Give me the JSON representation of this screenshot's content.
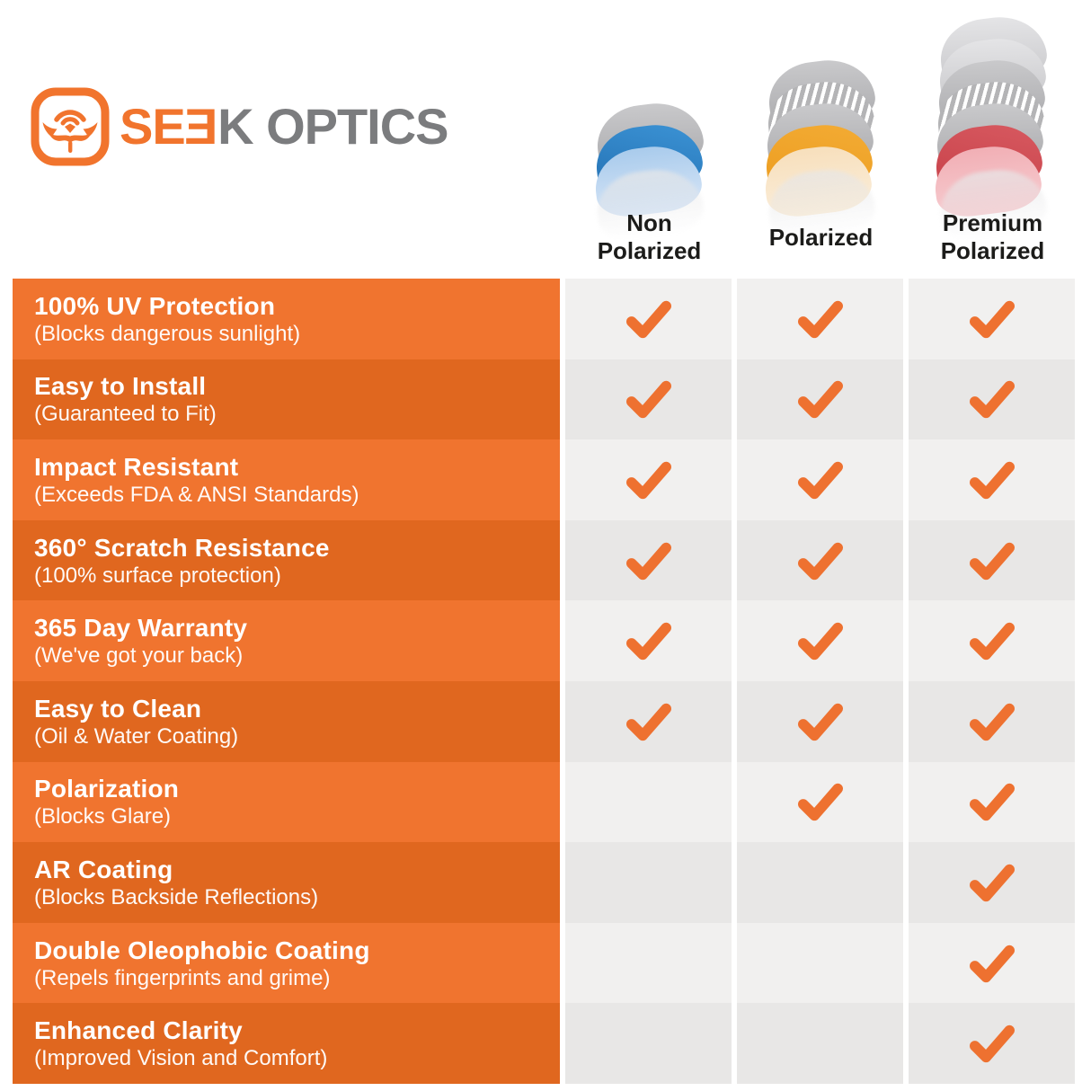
{
  "brand": {
    "wordmark_orange": "SE",
    "wordmark_reversed_e": "E",
    "wordmark_gray": "K OPTICS",
    "logo_icon": "seek-face-logo"
  },
  "chart_data": {
    "type": "table",
    "columns": [
      "Non\nPolarized",
      "Polarized",
      "Premium\nPolarized"
    ],
    "rows": [
      {
        "feature": "100% UV Protection",
        "note": "(Blocks dangerous sunlight)",
        "checks": [
          true,
          true,
          true
        ]
      },
      {
        "feature": "Easy to Install",
        "note": "(Guaranteed to Fit)",
        "checks": [
          true,
          true,
          true
        ]
      },
      {
        "feature": "Impact Resistant",
        "note": "(Exceeds FDA & ANSI Standards)",
        "checks": [
          true,
          true,
          true
        ]
      },
      {
        "feature": "360° Scratch Resistance",
        "note": "(100% surface protection)",
        "checks": [
          true,
          true,
          true
        ]
      },
      {
        "feature": "365 Day Warranty",
        "note": "(We've got your back)",
        "checks": [
          true,
          true,
          true
        ]
      },
      {
        "feature": "Easy to Clean",
        "note": "(Oil & Water Coating)",
        "checks": [
          true,
          true,
          true
        ]
      },
      {
        "feature": "Polarization",
        "note": "(Blocks Glare)",
        "checks": [
          false,
          true,
          true
        ]
      },
      {
        "feature": "AR Coating",
        "note": "(Blocks Backside Reflections)",
        "checks": [
          false,
          false,
          true
        ]
      },
      {
        "feature": "Double Oleophobic Coating",
        "note": "(Repels fingerprints and grime)",
        "checks": [
          false,
          false,
          true
        ]
      },
      {
        "feature": "Enhanced Clarity",
        "note": "(Improved Vision and Comfort)",
        "checks": [
          false,
          false,
          true
        ]
      }
    ]
  },
  "lens_illustrations": [
    [
      "gray",
      "blue",
      "light-blue"
    ],
    [
      "gray",
      "striped",
      "gray",
      "orange",
      "cream"
    ],
    [
      "light-gray",
      "light-gray",
      "gray",
      "striped",
      "gray",
      "red",
      "pink"
    ]
  ],
  "colors": {
    "brand_orange": "#F1742D",
    "brand_gray": "#7B7C7E",
    "header_text": "#1C1C1A",
    "row_orange_light": "#F0742F",
    "row_orange_dark": "#E0671F",
    "cell_gray_light": "#F1F0EF",
    "cell_gray_dark": "#E8E7E6",
    "check_orange": "#EE7130"
  }
}
